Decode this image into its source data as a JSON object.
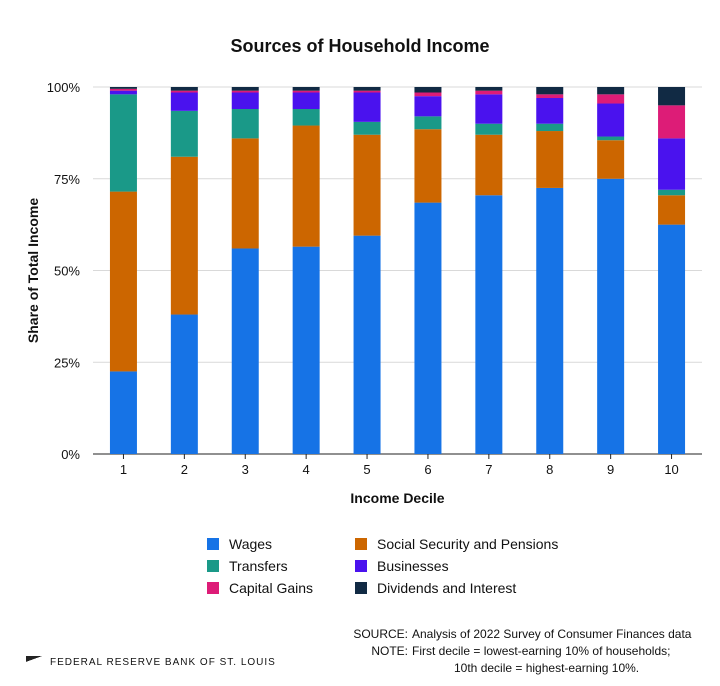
{
  "chart_data": {
    "type": "bar",
    "stacked": true,
    "title": "Sources of Household Income",
    "xlabel": "Income Decile",
    "ylabel": "Share of Total Income",
    "ylim": [
      0,
      100
    ],
    "yticks": [
      "0%",
      "25%",
      "50%",
      "75%",
      "100%"
    ],
    "categories": [
      "1",
      "2",
      "3",
      "4",
      "5",
      "6",
      "7",
      "8",
      "9",
      "10"
    ],
    "grid": true,
    "legend_position": "bottom",
    "series": [
      {
        "name": "Wages",
        "color": "#1673e6",
        "values": [
          22.5,
          38,
          56,
          56.5,
          59.5,
          68.5,
          70.5,
          72.5,
          75,
          62.5
        ]
      },
      {
        "name": "Social Security and Pensions",
        "color": "#cc6600",
        "values": [
          49,
          43,
          30,
          33,
          27.5,
          20,
          16.5,
          15.5,
          10.5,
          8
        ]
      },
      {
        "name": "Transfers",
        "color": "#1a9988",
        "values": [
          26.5,
          12.5,
          8,
          4.5,
          3.5,
          3.5,
          3,
          2,
          1,
          1.5
        ]
      },
      {
        "name": "Businesses",
        "color": "#4a12ee",
        "values": [
          1,
          5,
          4.5,
          4.5,
          8,
          5.5,
          8,
          7,
          9,
          14
        ]
      },
      {
        "name": "Capital Gains",
        "color": "#dd1c77",
        "values": [
          0.5,
          0.5,
          0.5,
          0.5,
          0.5,
          1,
          1,
          1,
          2.5,
          9
        ]
      },
      {
        "name": "Dividends and Interest",
        "color": "#112a44",
        "values": [
          0.5,
          1,
          1,
          1,
          1,
          1.5,
          1,
          2,
          2,
          5
        ]
      }
    ]
  },
  "legend": [
    {
      "label": "Wages",
      "color": "#1673e6"
    },
    {
      "label": "Social Security and Pensions",
      "color": "#cc6600"
    },
    {
      "label": "Transfers",
      "color": "#1a9988"
    },
    {
      "label": "Businesses",
      "color": "#4a12ee"
    },
    {
      "label": "Capital Gains",
      "color": "#dd1c77"
    },
    {
      "label": "Dividends and Interest",
      "color": "#112a44"
    }
  ],
  "footer": {
    "org": "FEDERAL RESERVE BANK OF ST. LOUIS",
    "source_label": "SOURCE:",
    "source_text": "Analysis of 2022 Survey of Consumer Finances data",
    "note_label": "NOTE:",
    "note_line1": "First decile = lowest-earning 10% of households;",
    "note_line2": "10th decile = highest-earning 10%."
  }
}
